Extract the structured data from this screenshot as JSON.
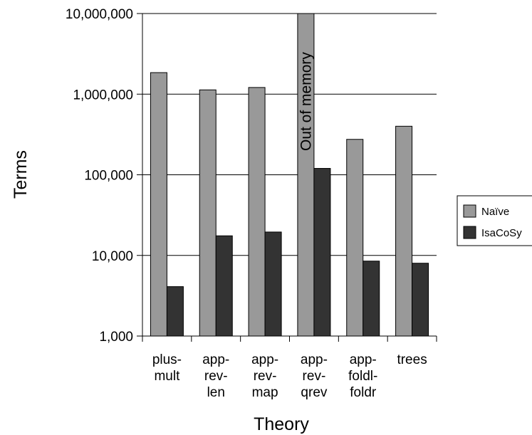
{
  "chart_data": {
    "type": "bar",
    "xlabel": "Theory",
    "ylabel": "Terms",
    "yscale": "log",
    "ylim": [
      1000,
      10000000
    ],
    "yticks": [
      {
        "value": 1000,
        "label": "1,000"
      },
      {
        "value": 10000,
        "label": "10,000"
      },
      {
        "value": 100000,
        "label": "100,000"
      },
      {
        "value": 1000000,
        "label": "1,000,000"
      },
      {
        "value": 10000000,
        "label": "10,000,000"
      }
    ],
    "grid": "horizontal",
    "legend_position": "right",
    "categories": [
      [
        "plus-",
        "mult"
      ],
      [
        "app-",
        "rev-",
        "len"
      ],
      [
        "app-",
        "rev-",
        "map"
      ],
      [
        "app-",
        "rev-",
        "qrev"
      ],
      [
        "app-",
        "foldl-",
        "foldr"
      ],
      [
        "trees"
      ]
    ],
    "series": [
      {
        "name": "Naïve",
        "color": "#999999",
        "values": [
          1850000,
          1130000,
          1210000,
          10000000,
          275000,
          400000
        ]
      },
      {
        "name": "IsaCoSy",
        "color": "#333333",
        "values": [
          4100,
          17500,
          19500,
          120000,
          8500,
          8000
        ]
      }
    ],
    "annotations": [
      {
        "text": "Out of memory",
        "category_index": 3,
        "series_index": 0
      }
    ]
  }
}
